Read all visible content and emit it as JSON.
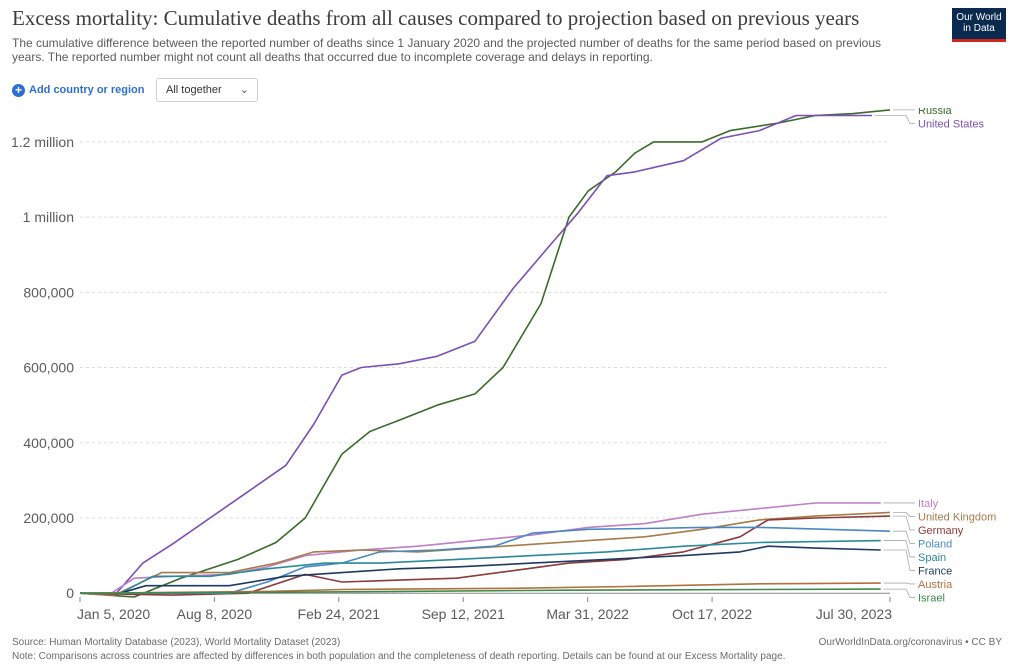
{
  "header": {
    "title": "Excess mortality: Cumulative deaths from all causes compared to projection based on previous years",
    "subtitle": "The cumulative difference between the reported number of deaths since 1 January 2020 and the projected number of deaths for the same period based on previous years. The reported number might not count all deaths that occurred due to incomplete coverage and delays in reporting.",
    "logo_line1": "Our World",
    "logo_line2": "in Data"
  },
  "controls": {
    "add_label": "Add country or region",
    "select_value": "All together"
  },
  "footer": {
    "source": "Source: Human Mortality Database (2023), World Mortality Dataset (2023)",
    "note": "Note: Comparisons across countries are affected by differences in both population and the completeness of death reporting. Details can be found at our Excess Mortality page.",
    "credit": "OurWorldInData.org/coronavirus • CC BY"
  },
  "chart_data": {
    "type": "line",
    "x_ticks": [
      "Jan 5, 2020",
      "Aug 8, 2020",
      "Feb 24, 2021",
      "Sep 12, 2021",
      "Mar 31, 2022",
      "Oct 17, 2022",
      "Jul 30, 2023"
    ],
    "x_tick_dates": [
      "2020-01-05",
      "2020-08-08",
      "2021-02-24",
      "2021-09-12",
      "2022-03-31",
      "2022-10-17",
      "2023-07-30"
    ],
    "y_ticks": [
      0,
      200000,
      400000,
      600000,
      800000,
      1000000,
      1200000
    ],
    "y_tick_labels": [
      "0",
      "200,000",
      "400,000",
      "600,000",
      "800,000",
      "1 million",
      "1.2 million"
    ],
    "xlim": [
      "2020-01-05",
      "2023-07-30"
    ],
    "ylim": [
      -10000,
      1290000
    ],
    "grid": "horizontal dashed",
    "legend": "line end labels on right",
    "series": [
      {
        "name": "Russia",
        "color": "#3a6b2a",
        "points": [
          [
            "2020-01-05",
            0
          ],
          [
            "2020-04-01",
            -10000
          ],
          [
            "2020-06-15",
            40000
          ],
          [
            "2020-09-15",
            90000
          ],
          [
            "2020-11-15",
            135000
          ],
          [
            "2021-01-01",
            200000
          ],
          [
            "2021-03-01",
            370000
          ],
          [
            "2021-04-15",
            430000
          ],
          [
            "2021-06-01",
            460000
          ],
          [
            "2021-08-01",
            500000
          ],
          [
            "2021-10-01",
            530000
          ],
          [
            "2021-11-15",
            600000
          ],
          [
            "2022-01-15",
            770000
          ],
          [
            "2022-03-01",
            1000000
          ],
          [
            "2022-04-01",
            1070000
          ],
          [
            "2022-05-15",
            1120000
          ],
          [
            "2022-06-15",
            1170000
          ],
          [
            "2022-07-15",
            1200000
          ],
          [
            "2022-10-01",
            1200000
          ],
          [
            "2022-11-15",
            1230000
          ],
          [
            "2023-02-01",
            1250000
          ],
          [
            "2023-04-01",
            1270000
          ],
          [
            "2023-06-01",
            1275000
          ],
          [
            "2023-07-30",
            1285000
          ]
        ]
      },
      {
        "name": "United States",
        "color": "#7b4fb5",
        "points": [
          [
            "2020-01-05",
            0
          ],
          [
            "2020-03-01",
            -5000
          ],
          [
            "2020-04-15",
            80000
          ],
          [
            "2020-06-01",
            130000
          ],
          [
            "2020-08-01",
            200000
          ],
          [
            "2020-10-01",
            270000
          ],
          [
            "2020-12-01",
            340000
          ],
          [
            "2021-01-15",
            450000
          ],
          [
            "2021-03-01",
            580000
          ],
          [
            "2021-04-01",
            600000
          ],
          [
            "2021-06-01",
            610000
          ],
          [
            "2021-08-01",
            630000
          ],
          [
            "2021-10-01",
            670000
          ],
          [
            "2021-12-01",
            810000
          ],
          [
            "2022-02-01",
            930000
          ],
          [
            "2022-03-15",
            1010000
          ],
          [
            "2022-05-01",
            1110000
          ],
          [
            "2022-06-15",
            1120000
          ],
          [
            "2022-09-01",
            1150000
          ],
          [
            "2022-11-01",
            1210000
          ],
          [
            "2023-01-01",
            1230000
          ],
          [
            "2023-03-01",
            1270000
          ],
          [
            "2023-07-01",
            1270000
          ]
        ]
      },
      {
        "name": "Italy",
        "color": "#c07ec7",
        "points": [
          [
            "2020-01-05",
            0
          ],
          [
            "2020-02-20",
            -5000
          ],
          [
            "2020-04-01",
            40000
          ],
          [
            "2020-06-01",
            45000
          ],
          [
            "2020-09-01",
            50000
          ],
          [
            "2020-11-01",
            70000
          ],
          [
            "2021-01-01",
            100000
          ],
          [
            "2021-04-01",
            115000
          ],
          [
            "2021-07-01",
            125000
          ],
          [
            "2021-10-01",
            140000
          ],
          [
            "2022-01-01",
            155000
          ],
          [
            "2022-04-01",
            175000
          ],
          [
            "2022-07-01",
            185000
          ],
          [
            "2022-10-01",
            210000
          ],
          [
            "2023-01-01",
            225000
          ],
          [
            "2023-04-01",
            240000
          ],
          [
            "2023-07-15",
            240000
          ]
        ]
      },
      {
        "name": "United Kingdom",
        "color": "#a77b4a",
        "points": [
          [
            "2020-01-05",
            0
          ],
          [
            "2020-03-01",
            -5000
          ],
          [
            "2020-05-15",
            55000
          ],
          [
            "2020-09-01",
            55000
          ],
          [
            "2020-11-15",
            80000
          ],
          [
            "2021-01-15",
            110000
          ],
          [
            "2021-04-01",
            115000
          ],
          [
            "2021-07-01",
            110000
          ],
          [
            "2021-10-01",
            120000
          ],
          [
            "2022-01-01",
            130000
          ],
          [
            "2022-04-01",
            140000
          ],
          [
            "2022-07-01",
            150000
          ],
          [
            "2022-10-01",
            170000
          ],
          [
            "2023-01-01",
            195000
          ],
          [
            "2023-04-01",
            205000
          ],
          [
            "2023-07-30",
            215000
          ]
        ]
      },
      {
        "name": "Germany",
        "color": "#8c3a3a",
        "points": [
          [
            "2020-01-05",
            0
          ],
          [
            "2020-06-01",
            -5000
          ],
          [
            "2020-10-01",
            0
          ],
          [
            "2021-01-01",
            50000
          ],
          [
            "2021-03-01",
            30000
          ],
          [
            "2021-06-01",
            35000
          ],
          [
            "2021-09-01",
            40000
          ],
          [
            "2021-12-01",
            60000
          ],
          [
            "2022-03-01",
            80000
          ],
          [
            "2022-06-01",
            90000
          ],
          [
            "2022-09-01",
            110000
          ],
          [
            "2022-12-01",
            150000
          ],
          [
            "2023-01-15",
            195000
          ],
          [
            "2023-04-01",
            200000
          ],
          [
            "2023-07-30",
            205000
          ]
        ]
      },
      {
        "name": "Poland",
        "color": "#4a88c2",
        "points": [
          [
            "2020-01-05",
            0
          ],
          [
            "2020-09-01",
            0
          ],
          [
            "2020-11-01",
            30000
          ],
          [
            "2021-01-01",
            70000
          ],
          [
            "2021-03-01",
            80000
          ],
          [
            "2021-05-01",
            110000
          ],
          [
            "2021-08-01",
            115000
          ],
          [
            "2021-11-01",
            125000
          ],
          [
            "2022-01-01",
            160000
          ],
          [
            "2022-04-01",
            170000
          ],
          [
            "2022-07-01",
            172000
          ],
          [
            "2022-10-01",
            175000
          ],
          [
            "2023-01-01",
            175000
          ],
          [
            "2023-07-30",
            165000
          ]
        ]
      },
      {
        "name": "Spain",
        "color": "#2a8a9a",
        "points": [
          [
            "2020-01-05",
            0
          ],
          [
            "2020-03-10",
            0
          ],
          [
            "2020-05-01",
            45000
          ],
          [
            "2020-08-01",
            45000
          ],
          [
            "2020-11-01",
            65000
          ],
          [
            "2021-02-01",
            80000
          ],
          [
            "2021-05-01",
            80000
          ],
          [
            "2021-09-01",
            90000
          ],
          [
            "2022-01-01",
            100000
          ],
          [
            "2022-05-01",
            110000
          ],
          [
            "2022-09-01",
            125000
          ],
          [
            "2023-01-01",
            135000
          ],
          [
            "2023-07-15",
            140000
          ]
        ]
      },
      {
        "name": "France",
        "color": "#1f3a5f",
        "points": [
          [
            "2020-01-05",
            0
          ],
          [
            "2020-03-10",
            0
          ],
          [
            "2020-04-20",
            20000
          ],
          [
            "2020-09-01",
            20000
          ],
          [
            "2020-12-01",
            45000
          ],
          [
            "2021-03-01",
            55000
          ],
          [
            "2021-06-01",
            65000
          ],
          [
            "2021-09-01",
            70000
          ],
          [
            "2022-01-01",
            80000
          ],
          [
            "2022-05-01",
            90000
          ],
          [
            "2022-09-01",
            100000
          ],
          [
            "2022-12-01",
            110000
          ],
          [
            "2023-01-15",
            125000
          ],
          [
            "2023-04-01",
            120000
          ],
          [
            "2023-07-15",
            115000
          ]
        ]
      },
      {
        "name": "Austria",
        "color": "#b3703f",
        "points": [
          [
            "2020-01-05",
            0
          ],
          [
            "2020-11-01",
            5000
          ],
          [
            "2021-03-01",
            10000
          ],
          [
            "2021-12-01",
            13000
          ],
          [
            "2022-06-01",
            18000
          ],
          [
            "2023-01-01",
            25000
          ],
          [
            "2023-07-15",
            27000
          ]
        ]
      },
      {
        "name": "Israel",
        "color": "#3f8a4a",
        "points": [
          [
            "2020-01-05",
            0
          ],
          [
            "2020-10-01",
            2000
          ],
          [
            "2021-06-01",
            5000
          ],
          [
            "2022-03-01",
            8000
          ],
          [
            "2023-01-01",
            10000
          ],
          [
            "2023-07-15",
            11000
          ]
        ]
      }
    ]
  }
}
